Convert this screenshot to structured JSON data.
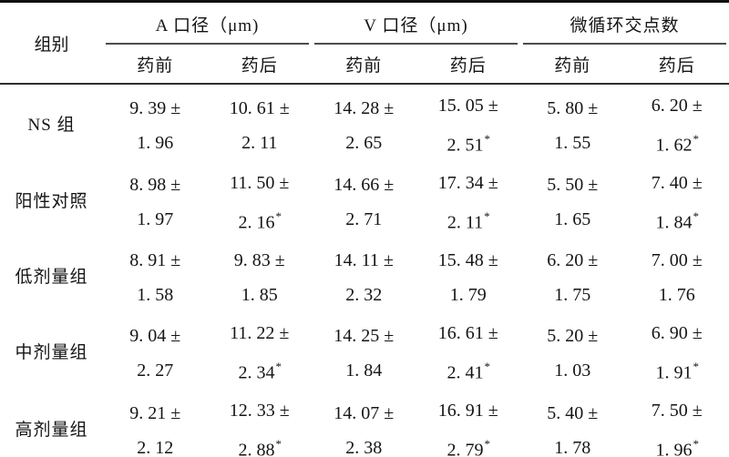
{
  "table": {
    "group_header": "组别",
    "significance_marker": "*",
    "col_groups": [
      {
        "label": "A 口径（μm)",
        "sub": [
          "药前",
          "药后"
        ]
      },
      {
        "label": "V 口径（μm)",
        "sub": [
          "药前",
          "药后"
        ]
      },
      {
        "label": "微循环交点数",
        "sub": [
          "药前",
          "药后"
        ]
      }
    ],
    "rows": [
      {
        "group": "NS 组",
        "cells": [
          {
            "mean": "9. 39 ±",
            "sd": "1. 96",
            "star": false
          },
          {
            "mean": "10. 61 ±",
            "sd": "2. 11",
            "star": false
          },
          {
            "mean": "14. 28 ±",
            "sd": "2. 65",
            "star": false
          },
          {
            "mean": "15. 05 ±",
            "sd": "2. 51",
            "star": true
          },
          {
            "mean": "5. 80 ±",
            "sd": "1. 55",
            "star": false
          },
          {
            "mean": "6. 20 ±",
            "sd": "1. 62",
            "star": true
          }
        ]
      },
      {
        "group": "阳性对照",
        "cells": [
          {
            "mean": "8. 98 ±",
            "sd": "1. 97",
            "star": false
          },
          {
            "mean": "11. 50 ±",
            "sd": "2. 16",
            "star": true
          },
          {
            "mean": "14. 66 ±",
            "sd": "2. 71",
            "star": false
          },
          {
            "mean": "17. 34 ±",
            "sd": "2. 11",
            "star": true
          },
          {
            "mean": "5. 50 ±",
            "sd": "1. 65",
            "star": false
          },
          {
            "mean": "7. 40 ±",
            "sd": "1. 84",
            "star": true
          }
        ]
      },
      {
        "group": "低剂量组",
        "cells": [
          {
            "mean": "8. 91 ±",
            "sd": "1. 58",
            "star": false
          },
          {
            "mean": "9. 83 ±",
            "sd": "1. 85",
            "star": false
          },
          {
            "mean": "14. 11 ±",
            "sd": "2. 32",
            "star": false
          },
          {
            "mean": "15. 48 ±",
            "sd": "1. 79",
            "star": false
          },
          {
            "mean": "6. 20 ±",
            "sd": "1. 75",
            "star": false
          },
          {
            "mean": "7. 00 ±",
            "sd": "1. 76",
            "star": false
          }
        ]
      },
      {
        "group": "中剂量组",
        "cells": [
          {
            "mean": "9. 04 ±",
            "sd": "2. 27",
            "star": false
          },
          {
            "mean": "11. 22 ±",
            "sd": "2. 34",
            "star": true
          },
          {
            "mean": "14. 25 ±",
            "sd": "1. 84",
            "star": false
          },
          {
            "mean": "16. 61 ±",
            "sd": "2. 41",
            "star": true
          },
          {
            "mean": "5. 20 ±",
            "sd": "1. 03",
            "star": false
          },
          {
            "mean": "6. 90 ±",
            "sd": "1. 91",
            "star": true
          }
        ]
      },
      {
        "group": "高剂量组",
        "cells": [
          {
            "mean": "9. 21 ±",
            "sd": "2. 12",
            "star": false
          },
          {
            "mean": "12. 33 ±",
            "sd": "2. 88",
            "star": true
          },
          {
            "mean": "14. 07 ±",
            "sd": "2. 38",
            "star": false
          },
          {
            "mean": "16. 91 ±",
            "sd": "2. 79",
            "star": true
          },
          {
            "mean": "5. 40 ±",
            "sd": "1. 78",
            "star": false
          },
          {
            "mean": "7. 50 ±",
            "sd": "1. 96",
            "star": true
          }
        ]
      }
    ]
  }
}
